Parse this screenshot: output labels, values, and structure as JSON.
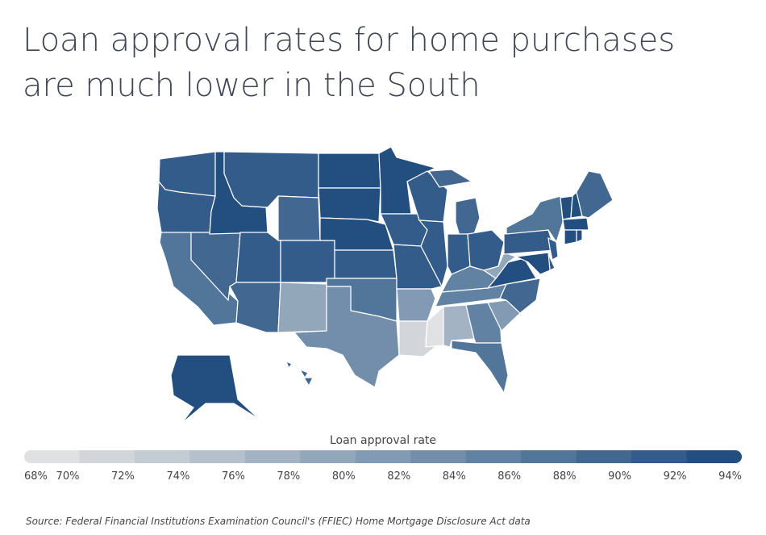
{
  "chart_data": {
    "type": "choropleth",
    "title": "Loan approval rates for home purchases are much lower in the South",
    "legend_title": "Loan approval rate",
    "source": "Source:  Federal Financial Institutions Examination Council's (FFIEC) Home Mortgage Disclosure Act data",
    "values": [
      90,
      90,
      86,
      88,
      92,
      90,
      89,
      90,
      90,
      89,
      79,
      93,
      93,
      93,
      90,
      86,
      83,
      93,
      90,
      91,
      80,
      70,
      69,
      91,
      91,
      88,
      90,
      90,
      84,
      85,
      77,
      85,
      86,
      81,
      88,
      92,
      79,
      91,
      87,
      93,
      92,
      88,
      93,
      93,
      92,
      90,
      90,
      92,
      93,
      89
    ],
    "ticks": [
      {
        "value": 68,
        "label": "68%"
      },
      {
        "value": 70,
        "label": "70%"
      },
      {
        "value": 72,
        "label": "72%"
      },
      {
        "value": 74,
        "label": "74%"
      },
      {
        "value": 76,
        "label": "76%"
      },
      {
        "value": 78,
        "label": "78%"
      },
      {
        "value": 80,
        "label": "80%"
      },
      {
        "value": 82,
        "label": "82%"
      },
      {
        "value": 84,
        "label": "84%"
      },
      {
        "value": 86,
        "label": "86%"
      },
      {
        "value": 88,
        "label": "88%"
      },
      {
        "value": 90,
        "label": "90%"
      },
      {
        "value": 92,
        "label": "92%"
      },
      {
        "value": 94,
        "label": "94%"
      }
    ],
    "colors": [
      "#dfe1e3",
      "#d2d6da",
      "#c3cbd3",
      "#b4c0cb",
      "#a3b3c3",
      "#93a7bb",
      "#829ab3",
      "#728eab",
      "#6282a3",
      "#52759a",
      "#426892",
      "#335c8a",
      "#234f80"
    ]
  }
}
